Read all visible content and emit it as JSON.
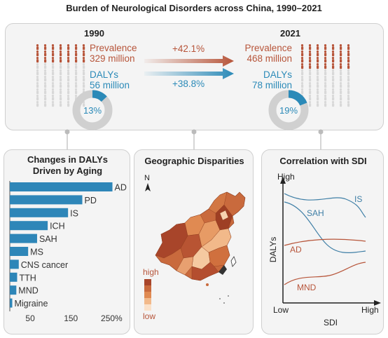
{
  "title": "Burden of Neurological Disorders across China, 1990–2021",
  "top": {
    "y1990": {
      "year": "1990",
      "prev_label": "Prevalence",
      "prev_value": "329 million",
      "daly_label": "DALYs",
      "daly_value": "56 million",
      "pct": "13%",
      "pct_fraction": 0.13
    },
    "y2021": {
      "year": "2021",
      "prev_label": "Prevalence",
      "prev_value": "468 million",
      "daly_label": "DALYs",
      "daly_value": "78 million",
      "pct": "19%",
      "pct_fraction": 0.19
    },
    "prev_change": "+42.1%",
    "daly_change": "+38.8%"
  },
  "colors": {
    "red": "#b7553a",
    "blue": "#2b8ab8",
    "grey": "#d0d0d0",
    "bar": "#2e86b8"
  },
  "aging": {
    "title_line1": "Changes in DALYs",
    "title_line2": "Driven by Aging",
    "xticks": [
      "50",
      "150",
      "250%"
    ],
    "chart_data": {
      "type": "bar",
      "categories": [
        "AD",
        "PD",
        "IS",
        "ICH",
        "SAH",
        "MS",
        "CNS cancer",
        "TTH",
        "MND",
        "Migraine"
      ],
      "values": [
        252,
        178,
        143,
        93,
        67,
        45,
        22,
        18,
        16,
        6
      ],
      "xlim": [
        0,
        270
      ],
      "ticks": [
        50,
        150,
        250
      ]
    }
  },
  "geo": {
    "title": "Geographic Disparities",
    "north": "N",
    "legend_high": "high",
    "legend_low": "low"
  },
  "sdi": {
    "title": "Correlation with SDI",
    "y_high": "High",
    "y_label": "DALYs",
    "x_low": "Low",
    "x_high": "High",
    "x_label": "SDI",
    "series_labels": {
      "IS": "IS",
      "SAH": "SAH",
      "AD": "AD",
      "MND": "MND"
    }
  }
}
